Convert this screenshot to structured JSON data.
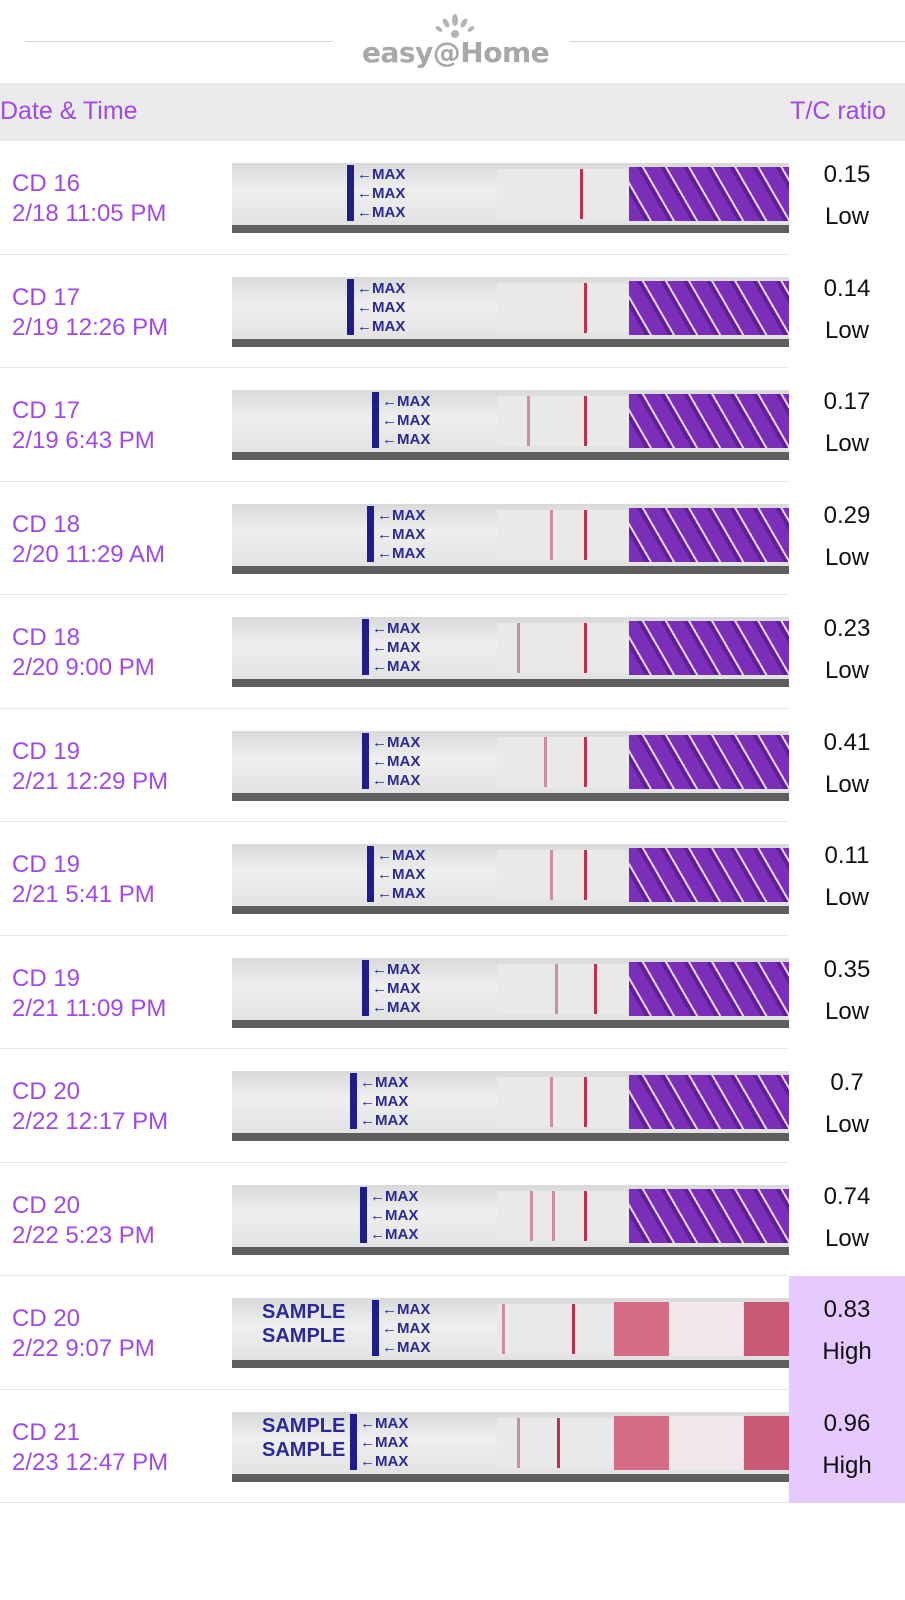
{
  "logo": {
    "text": "easy@Home"
  },
  "header": {
    "col_date": "Date & Time",
    "col_ratio": "T/C ratio"
  },
  "strip_labels": {
    "max": "←MAX",
    "sample": "SAMPLE"
  },
  "colors": {
    "accent": "#a049e6",
    "high_bg": "#e6c9ff",
    "header_bg": "#ebebeb"
  },
  "rows": [
    {
      "cd": "CD 16",
      "datetime": "2/18 11:05 PM",
      "ratio": "0.15",
      "level": "Low"
    },
    {
      "cd": "CD 17",
      "datetime": "2/19 12:26 PM",
      "ratio": "0.14",
      "level": "Low"
    },
    {
      "cd": "CD 17",
      "datetime": "2/19 6:43 PM",
      "ratio": "0.17",
      "level": "Low"
    },
    {
      "cd": "CD 18",
      "datetime": "2/20 11:29 AM",
      "ratio": "0.29",
      "level": "Low"
    },
    {
      "cd": "CD 18",
      "datetime": "2/20 9:00 PM",
      "ratio": "0.23",
      "level": "Low"
    },
    {
      "cd": "CD 19",
      "datetime": "2/21 12:29 PM",
      "ratio": "0.41",
      "level": "Low"
    },
    {
      "cd": "CD 19",
      "datetime": "2/21 5:41 PM",
      "ratio": "0.11",
      "level": "Low"
    },
    {
      "cd": "CD 19",
      "datetime": "2/21 11:09 PM",
      "ratio": "0.35",
      "level": "Low"
    },
    {
      "cd": "CD 20",
      "datetime": "2/22 12:17 PM",
      "ratio": "0.7",
      "level": "Low"
    },
    {
      "cd": "CD 20",
      "datetime": "2/22 5:23 PM",
      "ratio": "0.74",
      "level": "Low"
    },
    {
      "cd": "CD 20",
      "datetime": "2/22 9:07 PM",
      "ratio": "0.83",
      "level": "High"
    },
    {
      "cd": "CD 21",
      "datetime": "2/23 12:47 PM",
      "ratio": "0.96",
      "level": "High"
    }
  ]
}
